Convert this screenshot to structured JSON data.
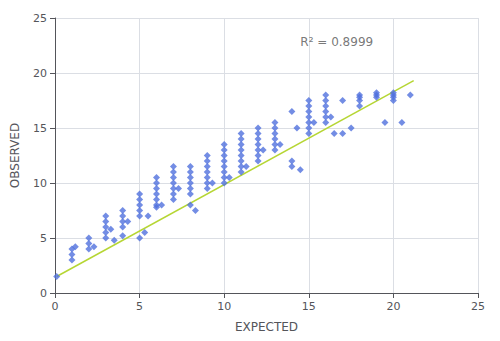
{
  "chart_data": {
    "type": "scatter",
    "xlabel": "EXPECTED",
    "ylabel": "OBSERVED",
    "xlim": [
      0,
      25
    ],
    "ylim": [
      0,
      25
    ],
    "xticks": [
      0,
      5,
      10,
      15,
      20,
      25
    ],
    "yticks": [
      0,
      5,
      10,
      15,
      20,
      25
    ],
    "grid": true,
    "series": [
      {
        "type": "scatter",
        "marker": "diamond",
        "x": [
          0.1,
          1.0,
          1.0,
          1.0,
          1.2,
          2.0,
          2.0,
          2.0,
          2.3,
          3.0,
          3.0,
          3.0,
          3.0,
          3.0,
          3.3,
          3.5,
          4.0,
          4.0,
          4.0,
          4.0,
          4.0,
          4.3,
          5.0,
          5.0,
          5.0,
          5.0,
          5.0,
          5.0,
          5.3,
          5.5,
          6.0,
          6.0,
          6.0,
          6.0,
          6.0,
          6.0,
          6.0,
          6.3,
          7.0,
          7.0,
          7.0,
          7.0,
          7.0,
          7.0,
          7.0,
          7.3,
          8.0,
          8.0,
          8.0,
          8.0,
          8.0,
          8.0,
          8.0,
          8.3,
          9.0,
          9.0,
          9.0,
          9.0,
          9.0,
          9.0,
          9.0,
          9.3,
          10.0,
          10.0,
          10.0,
          10.0,
          10.0,
          10.0,
          10.0,
          10.0,
          10.3,
          11.0,
          11.0,
          11.0,
          11.0,
          11.0,
          11.0,
          11.0,
          11.0,
          11.3,
          12.0,
          12.0,
          12.0,
          12.0,
          12.0,
          12.0,
          12.0,
          12.3,
          13.0,
          13.0,
          13.0,
          13.0,
          13.0,
          13.0,
          13.3,
          14.0,
          14.0,
          14.0,
          14.3,
          14.5,
          15.0,
          15.0,
          15.0,
          15.0,
          15.0,
          15.0,
          15.0,
          15.3,
          16.0,
          16.0,
          16.0,
          16.0,
          16.0,
          16.0,
          16.3,
          16.5,
          17.0,
          17.0,
          17.5,
          18.0,
          18.0,
          18.0,
          18.0,
          19.0,
          19.0,
          19.0,
          19.5,
          20.0,
          20.0,
          20.0,
          20.0,
          20.5,
          21.0
        ],
        "values": [
          1.5,
          3.0,
          3.5,
          4.0,
          4.2,
          4.0,
          4.5,
          5.0,
          4.2,
          5.0,
          5.5,
          6.0,
          6.5,
          7.0,
          5.8,
          4.8,
          6.0,
          6.5,
          7.0,
          7.5,
          5.2,
          6.5,
          5.0,
          7.0,
          7.5,
          8.0,
          8.5,
          9.0,
          5.5,
          7.0,
          7.8,
          8.0,
          8.5,
          9.0,
          9.5,
          10.0,
          10.5,
          8.0,
          8.5,
          9.0,
          9.5,
          10.0,
          10.5,
          11.0,
          11.5,
          9.5,
          8.0,
          9.0,
          9.5,
          10.0,
          10.5,
          11.0,
          11.5,
          7.5,
          9.5,
          10.0,
          10.5,
          11.0,
          11.5,
          12.0,
          12.5,
          10.0,
          10.0,
          10.5,
          11.0,
          11.5,
          12.0,
          12.5,
          13.0,
          13.5,
          10.5,
          11.0,
          11.5,
          12.0,
          12.5,
          13.0,
          13.5,
          14.0,
          14.5,
          11.5,
          12.0,
          12.5,
          13.0,
          13.5,
          14.0,
          14.5,
          15.0,
          13.0,
          13.0,
          13.5,
          14.0,
          14.5,
          15.0,
          15.5,
          13.5,
          11.5,
          12.0,
          16.5,
          15.0,
          11.2,
          14.5,
          15.0,
          15.5,
          16.0,
          16.5,
          17.0,
          17.5,
          15.5,
          15.5,
          16.0,
          16.5,
          17.0,
          17.5,
          18.0,
          16.0,
          14.5,
          14.5,
          17.5,
          15.0,
          17.5,
          18.0,
          17.0,
          17.8,
          17.8,
          18.0,
          18.2,
          15.5,
          17.8,
          18.0,
          18.2,
          17.5,
          15.5,
          18.0
        ]
      },
      {
        "type": "line",
        "x": [
          0.1,
          21.2
        ],
        "values": [
          1.5,
          19.3
        ]
      }
    ],
    "annotations": [
      {
        "text": "R² = 0.8999",
        "x": 14.5,
        "y": 22.8
      }
    ]
  }
}
